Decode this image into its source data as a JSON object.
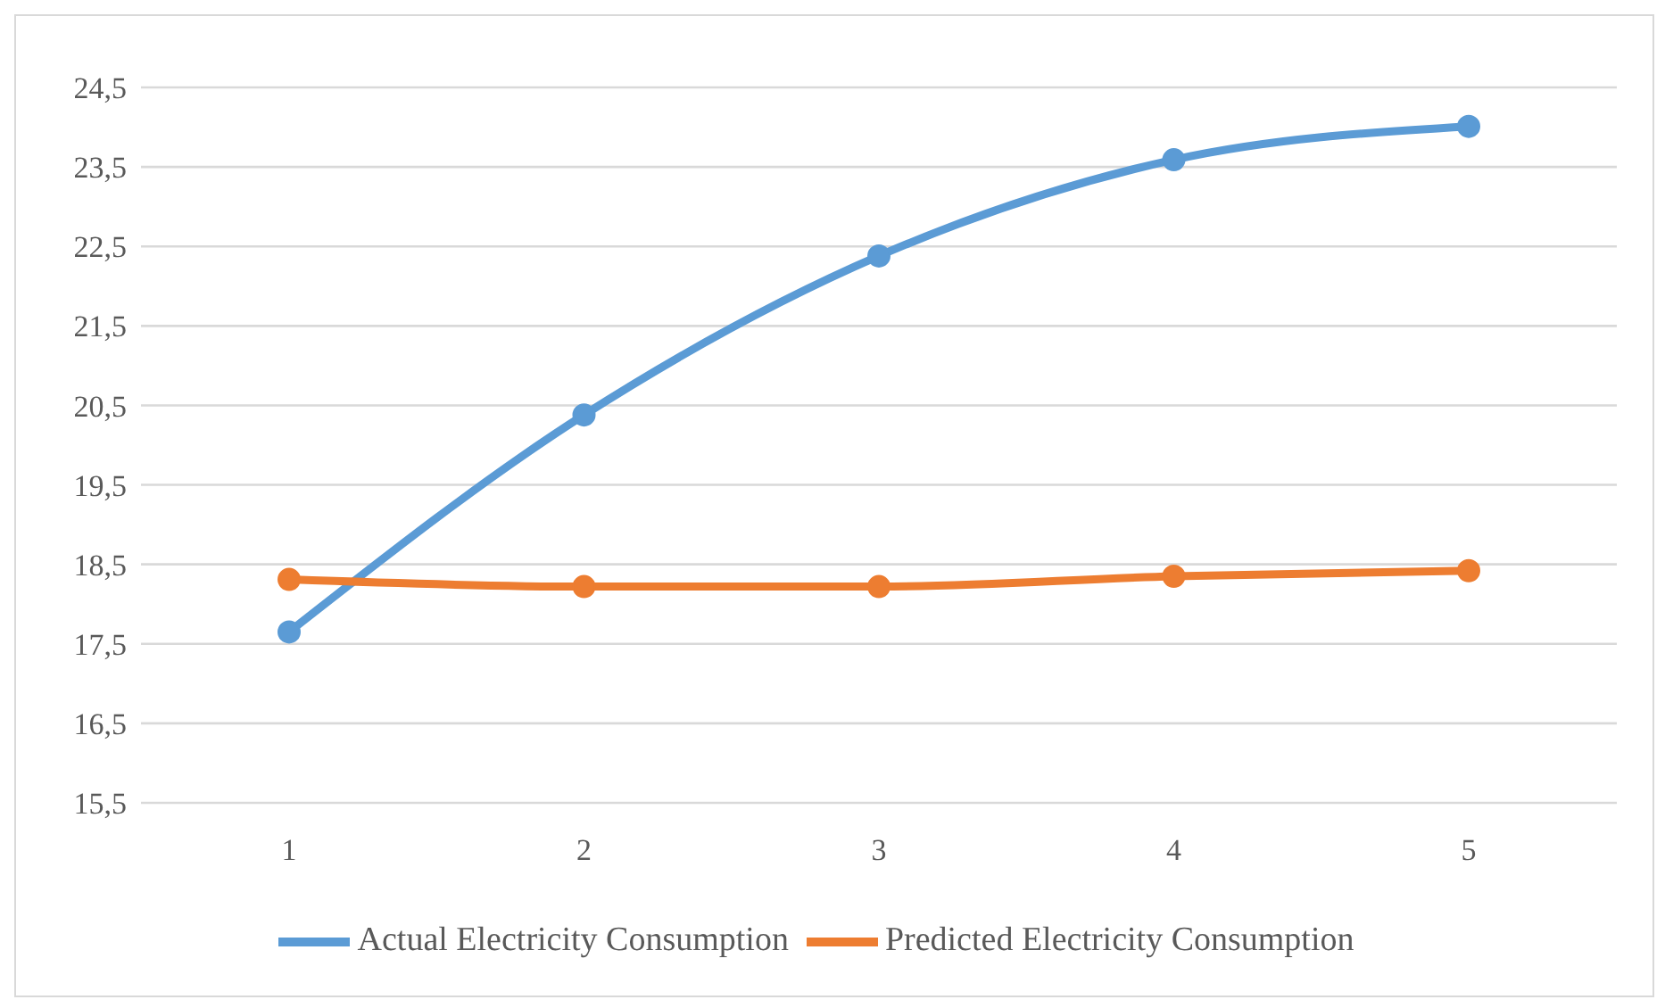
{
  "chart_data": {
    "type": "line",
    "categories": [
      "1",
      "2",
      "3",
      "4",
      "5"
    ],
    "series": [
      {
        "name": "Actual Electricity Consumption",
        "color": "#5b9bd5",
        "values": [
          17.65,
          20.38,
          22.38,
          23.59,
          24.01
        ]
      },
      {
        "name": "Predicted Electricity Consumption",
        "color": "#ed7d31",
        "values": [
          18.31,
          18.22,
          18.22,
          18.35,
          18.42
        ]
      }
    ],
    "ylim": [
      15.5,
      24.5
    ],
    "yticks": [
      {
        "value": 15.5,
        "label": "15,5"
      },
      {
        "value": 16.5,
        "label": "16,5"
      },
      {
        "value": 17.5,
        "label": "17,5"
      },
      {
        "value": 18.5,
        "label": "18,5"
      },
      {
        "value": 19.5,
        "label": "19,5"
      },
      {
        "value": 20.5,
        "label": "20,5"
      },
      {
        "value": 21.5,
        "label": "21,5"
      },
      {
        "value": 22.5,
        "label": "22,5"
      },
      {
        "value": 23.5,
        "label": "23,5"
      },
      {
        "value": 24.5,
        "label": "24,5"
      }
    ],
    "grid": "y",
    "legend": "bottom",
    "marker": "circle",
    "line_style": "solid"
  }
}
